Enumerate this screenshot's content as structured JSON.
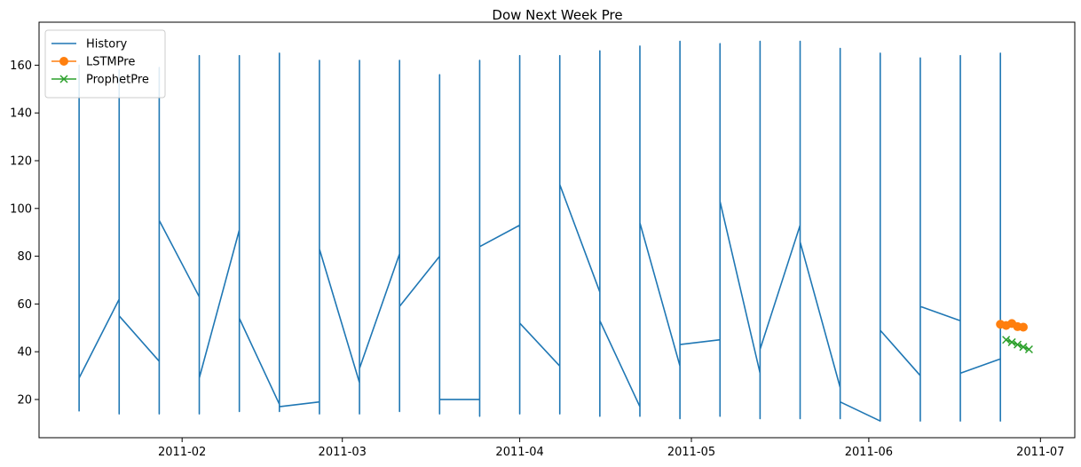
{
  "chart_data": {
    "type": "line",
    "title": "Dow Next Week Pre",
    "xlabel": "",
    "ylabel": "",
    "xlim": [
      "2011-01-07",
      "2011-07-07"
    ],
    "ylim": [
      4,
      178
    ],
    "x_ticks": [
      "2011-02",
      "2011-03",
      "2011-04",
      "2011-05",
      "2011-06",
      "2011-07"
    ],
    "y_ticks": [
      20,
      40,
      60,
      80,
      100,
      120,
      140,
      160
    ],
    "grid": false,
    "legend_position": "top-left",
    "series": [
      {
        "name": "History",
        "color": "#1f77b4",
        "marker": "none",
        "points": [
          [
            "2011-01-14",
            15
          ],
          [
            "2011-01-14",
            160
          ],
          [
            "2011-01-14",
            70
          ],
          [
            "2011-01-14",
            29
          ],
          [
            "2011-01-21",
            62
          ],
          [
            "2011-01-21",
            14
          ],
          [
            "2011-01-21",
            158
          ],
          [
            "2011-01-21",
            55
          ],
          [
            "2011-01-28",
            36
          ],
          [
            "2011-01-28",
            14
          ],
          [
            "2011-01-28",
            159
          ],
          [
            "2011-01-28",
            95
          ],
          [
            "2011-02-04",
            63
          ],
          [
            "2011-02-04",
            164
          ],
          [
            "2011-02-04",
            14
          ],
          [
            "2011-02-04",
            29
          ],
          [
            "2011-02-11",
            91
          ],
          [
            "2011-02-11",
            15
          ],
          [
            "2011-02-11",
            164
          ],
          [
            "2011-02-11",
            54
          ],
          [
            "2011-02-18",
            18
          ],
          [
            "2011-02-18",
            165
          ],
          [
            "2011-02-18",
            15
          ],
          [
            "2011-02-18",
            17
          ],
          [
            "2011-02-25",
            19
          ],
          [
            "2011-02-25",
            14
          ],
          [
            "2011-02-25",
            162
          ],
          [
            "2011-02-25",
            83
          ],
          [
            "2011-03-04",
            27
          ],
          [
            "2011-03-04",
            162
          ],
          [
            "2011-03-04",
            14
          ],
          [
            "2011-03-04",
            33
          ],
          [
            "2011-03-11",
            81
          ],
          [
            "2011-03-11",
            15
          ],
          [
            "2011-03-11",
            162
          ],
          [
            "2011-03-11",
            59
          ],
          [
            "2011-03-18",
            80
          ],
          [
            "2011-03-18",
            156
          ],
          [
            "2011-03-18",
            14
          ],
          [
            "2011-03-18",
            20
          ],
          [
            "2011-03-25",
            20
          ],
          [
            "2011-03-25",
            13
          ],
          [
            "2011-03-25",
            162
          ],
          [
            "2011-03-25",
            84
          ],
          [
            "2011-04-01",
            93
          ],
          [
            "2011-04-01",
            14
          ],
          [
            "2011-04-01",
            164
          ],
          [
            "2011-04-01",
            52
          ],
          [
            "2011-04-08",
            34
          ],
          [
            "2011-04-08",
            14
          ],
          [
            "2011-04-08",
            164
          ],
          [
            "2011-04-08",
            110
          ],
          [
            "2011-04-15",
            65
          ],
          [
            "2011-04-15",
            13
          ],
          [
            "2011-04-15",
            166
          ],
          [
            "2011-04-15",
            53
          ],
          [
            "2011-04-22",
            17
          ],
          [
            "2011-04-22",
            13
          ],
          [
            "2011-04-22",
            168
          ],
          [
            "2011-04-22",
            94
          ],
          [
            "2011-04-29",
            34
          ],
          [
            "2011-04-29",
            12
          ],
          [
            "2011-04-29",
            170
          ],
          [
            "2011-04-29",
            43
          ],
          [
            "2011-05-06",
            45
          ],
          [
            "2011-05-06",
            13
          ],
          [
            "2011-05-06",
            169
          ],
          [
            "2011-05-06",
            103
          ],
          [
            "2011-05-13",
            31
          ],
          [
            "2011-05-13",
            12
          ],
          [
            "2011-05-13",
            170
          ],
          [
            "2011-05-13",
            41
          ],
          [
            "2011-05-20",
            93
          ],
          [
            "2011-05-20",
            12
          ],
          [
            "2011-05-20",
            170
          ],
          [
            "2011-05-20",
            86
          ],
          [
            "2011-05-27",
            25
          ],
          [
            "2011-05-27",
            12
          ],
          [
            "2011-05-27",
            167
          ],
          [
            "2011-05-27",
            19
          ],
          [
            "2011-06-03",
            11
          ],
          [
            "2011-06-03",
            165
          ],
          [
            "2011-06-03",
            163
          ],
          [
            "2011-06-03",
            49
          ],
          [
            "2011-06-10",
            30
          ],
          [
            "2011-06-10",
            11
          ],
          [
            "2011-06-10",
            163
          ],
          [
            "2011-06-10",
            59
          ],
          [
            "2011-06-17",
            53
          ],
          [
            "2011-06-17",
            11
          ],
          [
            "2011-06-17",
            164
          ],
          [
            "2011-06-17",
            31
          ],
          [
            "2011-06-24",
            37
          ],
          [
            "2011-06-24",
            11
          ],
          [
            "2011-06-24",
            165
          ],
          [
            "2011-06-24",
            82
          ]
        ]
      },
      {
        "name": "LSTMPre",
        "color": "#ff7f0e",
        "marker": "circle",
        "points": [
          [
            "2011-06-24",
            51.5
          ],
          [
            "2011-06-25",
            51.0
          ],
          [
            "2011-06-26",
            51.8
          ],
          [
            "2011-06-27",
            50.5
          ],
          [
            "2011-06-28",
            50.3
          ]
        ]
      },
      {
        "name": "ProphetPre",
        "color": "#2ca02c",
        "marker": "x",
        "points": [
          [
            "2011-06-25",
            45.0
          ],
          [
            "2011-06-26",
            44.0
          ],
          [
            "2011-06-27",
            43.0
          ],
          [
            "2011-06-28",
            42.0
          ],
          [
            "2011-06-29",
            41.0
          ]
        ]
      }
    ]
  }
}
